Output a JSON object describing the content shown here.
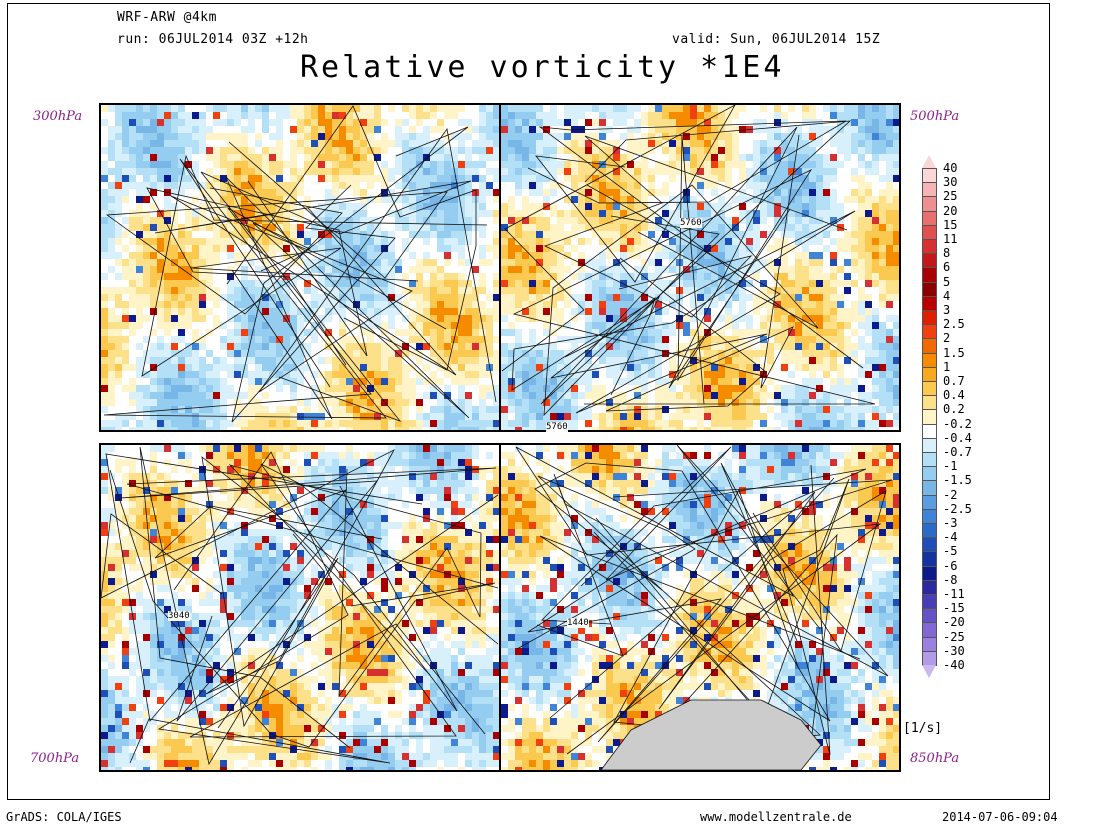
{
  "header": {
    "model": "WRF-ARW @4km",
    "run": "run: 06JUL2014 03Z +12h",
    "valid": "valid: Sun, 06JUL2014 15Z",
    "title": "Relative vorticity *1E4"
  },
  "panels": [
    {
      "level": "300hPa",
      "contour_label": ""
    },
    {
      "level": "500hPa",
      "contour_label": "5760",
      "contour_label_2": "5760"
    },
    {
      "level": "700hPa",
      "contour_label": "3040"
    },
    {
      "level": "850hPa",
      "contour_label": "1440"
    }
  ],
  "colorbar": {
    "unit": "[1/s]",
    "levels": [
      "40",
      "30",
      "25",
      "20",
      "15",
      "11",
      "8",
      "6",
      "5",
      "4",
      "3",
      "2.5",
      "2",
      "1.5",
      "1",
      "0.7",
      "0.4",
      "0.2",
      "-0.2",
      "-0.4",
      "-0.7",
      "-1",
      "-1.5",
      "-2",
      "-2.5",
      "-3",
      "-4",
      "-5",
      "-6",
      "-8",
      "-11",
      "-15",
      "-20",
      "-25",
      "-30",
      "-40"
    ],
    "colors": [
      "#fbd6d6",
      "#f6b4b4",
      "#ef9090",
      "#e87070",
      "#e05050",
      "#d63030",
      "#c41818",
      "#a80000",
      "#8c0000",
      "#b80000",
      "#e02000",
      "#f04010",
      "#f06a00",
      "#f58c00",
      "#f7aa20",
      "#fbc850",
      "#fde08a",
      "#fff3c8",
      "#ffffff",
      "#d7f0fb",
      "#b3e0f6",
      "#94cdf0",
      "#78b6e8",
      "#5a9de0",
      "#3f84d6",
      "#2a6bca",
      "#1e4fb8",
      "#1433a0",
      "#0c1a8c",
      "#2c28a0",
      "#4a3eb6",
      "#6652c8",
      "#8068d6",
      "#9a80e0",
      "#b49be8",
      "#cbb8ee"
    ]
  },
  "footer": {
    "left": "GrADS: COLA/IGES",
    "center": "www.modellzentrale.de",
    "right": "2014-07-06-09:04"
  }
}
